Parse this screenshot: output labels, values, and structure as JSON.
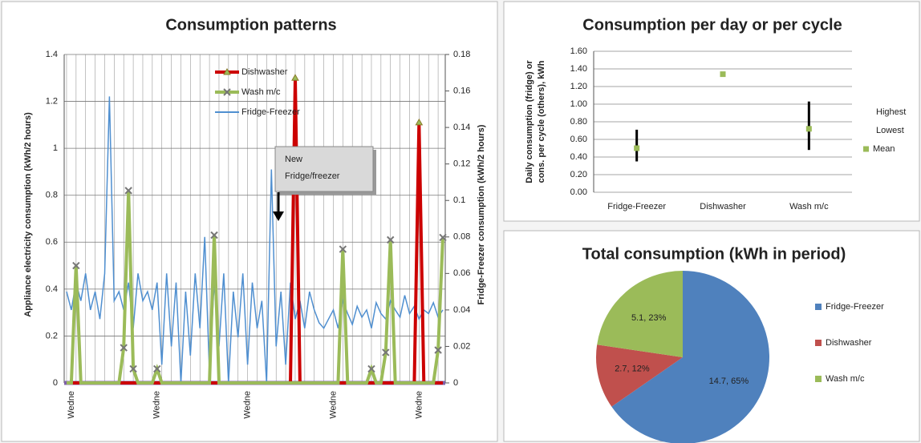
{
  "chart_data": [
    {
      "type": "line",
      "title": "Consumption patterns",
      "ylabel": "Appliance electricity consumption (kWh/2 hours)",
      "y2label": "Fridge-Freezer consumption (kWh/2 hours)",
      "categories": [
        null,
        "Wedne",
        null,
        null,
        null,
        null,
        null,
        null,
        null,
        null,
        null,
        null,
        null,
        null,
        null,
        null,
        null,
        null,
        null,
        "Wedne",
        null,
        null,
        null,
        null,
        null,
        null,
        null,
        null,
        null,
        null,
        null,
        null,
        null,
        null,
        null,
        null,
        null,
        null,
        "Wedne",
        null,
        null,
        null,
        null,
        null,
        null,
        null,
        null,
        null,
        null,
        null,
        null,
        null,
        null,
        null,
        null,
        null,
        "Wedne",
        null,
        null,
        null,
        null,
        null,
        null,
        null,
        null,
        null,
        null,
        null,
        null,
        null,
        null,
        null,
        null,
        null,
        "Wedne",
        null,
        null,
        null,
        null,
        null
      ],
      "series": [
        {
          "name": "Dishwasher",
          "color": "#cc0000",
          "values": [
            0,
            0,
            0,
            0,
            0,
            0,
            0,
            0,
            0,
            0,
            0,
            0,
            0,
            0,
            0,
            0,
            0,
            0,
            0,
            0,
            0,
            0,
            0,
            0,
            0,
            0,
            0,
            0,
            0,
            0,
            0,
            0,
            0,
            0,
            0,
            0,
            0,
            0,
            0,
            0,
            0,
            0,
            0,
            0,
            0,
            0,
            0,
            0,
            1.3,
            0,
            0,
            0,
            0,
            0,
            0,
            0,
            0,
            0,
            0,
            0,
            0,
            0,
            0,
            0,
            0,
            0,
            0,
            0,
            0,
            0,
            0,
            0,
            0,
            0,
            1.11,
            0,
            0,
            0,
            0,
            0
          ]
        },
        {
          "name": "Wash m/c",
          "color": "#9bbb59",
          "values": [
            0,
            0,
            0.5,
            0,
            0,
            0,
            0,
            0,
            0,
            0,
            0,
            0,
            0.15,
            0.82,
            0.06,
            0,
            0,
            0,
            0,
            0.06,
            0,
            0,
            0,
            0,
            0,
            0,
            0,
            0,
            0,
            0,
            0,
            0.63,
            0,
            0,
            0,
            0,
            0,
            0,
            0,
            0,
            0,
            0,
            0,
            0,
            0,
            0,
            0,
            0,
            0,
            0,
            0,
            0,
            0,
            0,
            0,
            0,
            0,
            0,
            0.57,
            0,
            0,
            0,
            0,
            0,
            0.06,
            0,
            0,
            0.13,
            0.61,
            0,
            0,
            0,
            0,
            0,
            0,
            0,
            0,
            0,
            0.14,
            0.62
          ]
        },
        {
          "name": "Fridge-Freezer",
          "color": "#4f8fd0",
          "axis": "y2",
          "values": [
            0.05,
            0.04,
            0.055,
            0.045,
            0.06,
            0.04,
            0.05,
            0.035,
            0.06,
            0.157,
            0.045,
            0.05,
            0.04,
            0.055,
            0.03,
            0.06,
            0.045,
            0.05,
            0.04,
            0.055,
            0.01,
            0.06,
            0.02,
            0.055,
            0,
            0.05,
            0.015,
            0.06,
            0.03,
            0.08,
            0.005,
            0.055,
            0.02,
            0.06,
            0,
            0.05,
            0.025,
            0.06,
            0.01,
            0.055,
            0.03,
            0.045,
            0,
            0.117,
            0.02,
            0.05,
            0.01,
            0.055,
            0.035,
            0.045,
            0.03,
            0.05,
            0.04,
            0.033,
            0.03,
            0.035,
            0.04,
            0.03,
            0.045,
            0.038,
            0.032,
            0.042,
            0.036,
            0.04,
            0.03,
            0.044,
            0.038,
            0.035,
            0.045,
            0.04,
            0.036,
            0.048,
            0.038,
            0.042,
            0.035,
            0.04,
            0.038,
            0.044,
            0.036,
            0.04
          ]
        }
      ],
      "ylim": [
        0,
        1.4
      ],
      "yticks": [
        0,
        0.2,
        0.4,
        0.6,
        0.8,
        1,
        1.2,
        1.4
      ],
      "y2lim": [
        0,
        0.18
      ],
      "y2ticks": [
        0,
        0.02,
        0.04,
        0.06,
        0.08,
        0.1,
        0.12,
        0.14,
        0.16,
        0.18
      ],
      "grid": true,
      "annotation": [
        "New",
        "Fridge/freezer"
      ]
    },
    {
      "type": "hilo",
      "title": "Consumption per day or per cycle",
      "ylabel": [
        "Daily consumption (fridge) or",
        "cons. per cycle (others), kWh"
      ],
      "categories": [
        "Fridge-Freezer",
        "Dishwasher",
        "Wash m/c"
      ],
      "series": [
        {
          "name": "Highest",
          "color": "#000000",
          "values": [
            0.71,
            1.34,
            1.03
          ]
        },
        {
          "name": "Lowest",
          "color": "#000000",
          "values": [
            0.35,
            1.34,
            0.48
          ]
        },
        {
          "name": "Mean",
          "color": "#9bbb59",
          "values": [
            0.5,
            1.34,
            0.72
          ]
        }
      ],
      "ylim": [
        0,
        1.6
      ],
      "yticks": [
        {
          "value": 0,
          "label": "0.00"
        },
        {
          "value": 0.2,
          "label": "0.20"
        },
        {
          "value": 0.4,
          "label": "0.40"
        },
        {
          "value": 0.6,
          "label": "0.60"
        },
        {
          "value": 0.8,
          "label": "0.80"
        },
        {
          "value": 1,
          "label": "1.00"
        },
        {
          "value": 1.2,
          "label": "1.20"
        },
        {
          "value": 1.4,
          "label": "1.40"
        },
        {
          "value": 1.6,
          "label": "1.60"
        }
      ],
      "grid": true
    },
    {
      "type": "pie",
      "title": "Total consumption (kWh in period)",
      "categories": [
        "Fridge-Freezer",
        "Dishwasher",
        "Wash m/c"
      ],
      "values": [
        14.7,
        2.7,
        5.1
      ],
      "value_labels": [
        "14.7, 65%",
        "2.7, 12%",
        "5.1, 23%"
      ],
      "colors": [
        "#4f81bd",
        "#c0504d",
        "#9bbb59"
      ]
    }
  ]
}
